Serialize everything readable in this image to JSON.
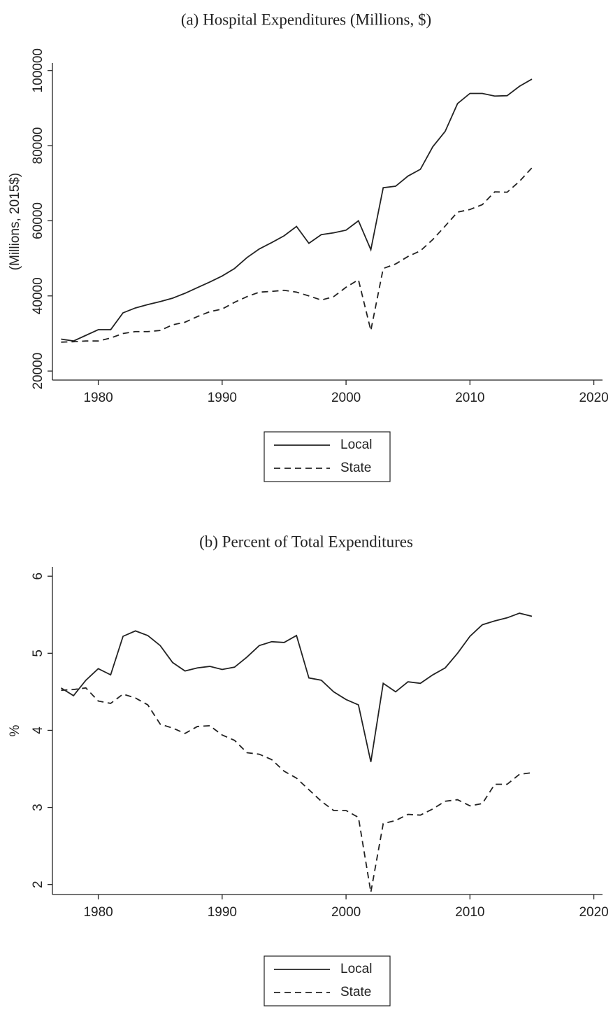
{
  "chart_data": [
    {
      "type": "line",
      "title": "(a) Hospital Expenditures (Millions, $)",
      "y_label": "(Millions, 2015$)",
      "x": [
        1977,
        1978,
        1979,
        1980,
        1981,
        1982,
        1983,
        1984,
        1985,
        1986,
        1987,
        1988,
        1989,
        1990,
        1991,
        1992,
        1993,
        1994,
        1995,
        1996,
        1997,
        1998,
        1999,
        2000,
        2001,
        2002,
        2003,
        2004,
        2005,
        2006,
        2007,
        2008,
        2009,
        2010,
        2011,
        2012,
        2013,
        2014,
        2015
      ],
      "series": [
        {
          "name": "Local",
          "color": "#222222",
          "line_style": "solid",
          "values": [
            28500,
            28000,
            29500,
            31000,
            31000,
            35500,
            36800,
            37700,
            38500,
            39400,
            40700,
            42200,
            43700,
            45300,
            47300,
            50200,
            52500,
            54200,
            56000,
            58500,
            54000,
            56300,
            56800,
            57500,
            60000,
            52300,
            68800,
            69200,
            71900,
            73700,
            79700,
            83800,
            91200,
            93900,
            93900,
            93200,
            93300,
            95800,
            97700
          ]
        },
        {
          "name": "State",
          "color": "#222222",
          "line_style": "dashed",
          "values": [
            27700,
            27800,
            28000,
            28000,
            28800,
            30000,
            30500,
            30500,
            30800,
            32300,
            33000,
            34500,
            35800,
            36500,
            38300,
            39800,
            41000,
            41200,
            41500,
            41000,
            40000,
            38900,
            39800,
            42300,
            44300,
            30800,
            47300,
            48500,
            50500,
            52000,
            55000,
            58600,
            62300,
            63000,
            64300,
            67700,
            67600,
            70500,
            74100
          ]
        }
      ],
      "xlim": [
        1976.3,
        2020.7
      ],
      "xticks": [
        1980,
        1990,
        2000,
        2010,
        2020
      ],
      "ylim": [
        17600,
        102000
      ],
      "yticks": [
        20000,
        40000,
        60000,
        80000,
        100000
      ],
      "grid": false,
      "legend": "bottom"
    },
    {
      "type": "line",
      "title": "(b) Percent of Total Expenditures",
      "y_label": "%",
      "x": [
        1977,
        1978,
        1979,
        1980,
        1981,
        1982,
        1983,
        1984,
        1985,
        1986,
        1987,
        1988,
        1989,
        1990,
        1991,
        1992,
        1993,
        1994,
        1995,
        1996,
        1997,
        1998,
        1999,
        2000,
        2001,
        2002,
        2003,
        2004,
        2005,
        2006,
        2007,
        2008,
        2009,
        2010,
        2011,
        2012,
        2013,
        2014,
        2015
      ],
      "series": [
        {
          "name": "Local",
          "color": "#222222",
          "line_style": "solid",
          "values": [
            4.55,
            4.45,
            4.65,
            4.8,
            4.72,
            5.22,
            5.29,
            5.23,
            5.1,
            4.88,
            4.77,
            4.81,
            4.83,
            4.79,
            4.82,
            4.95,
            5.1,
            5.15,
            5.14,
            5.23,
            4.68,
            4.65,
            4.5,
            4.4,
            4.33,
            3.59,
            4.61,
            4.5,
            4.63,
            4.61,
            4.72,
            4.81,
            5.0,
            5.22,
            5.37,
            5.42,
            5.46,
            5.52,
            5.48
          ]
        },
        {
          "name": "State",
          "color": "#222222",
          "line_style": "dashed",
          "values": [
            4.52,
            4.53,
            4.55,
            4.38,
            4.35,
            4.47,
            4.42,
            4.33,
            4.08,
            4.03,
            3.96,
            4.05,
            4.06,
            3.94,
            3.87,
            3.71,
            3.69,
            3.62,
            3.47,
            3.38,
            3.23,
            3.08,
            2.96,
            2.96,
            2.87,
            1.9,
            2.79,
            2.83,
            2.91,
            2.9,
            2.98,
            3.08,
            3.1,
            3.02,
            3.05,
            3.3,
            3.3,
            3.43,
            3.45
          ]
        }
      ],
      "xlim": [
        1976.3,
        2020.7
      ],
      "xticks": [
        1980,
        1990,
        2000,
        2010,
        2020
      ],
      "ylim": [
        1.87,
        6.12
      ],
      "yticks": [
        2,
        3,
        4,
        5,
        6
      ],
      "grid": false,
      "legend": "bottom"
    }
  ]
}
